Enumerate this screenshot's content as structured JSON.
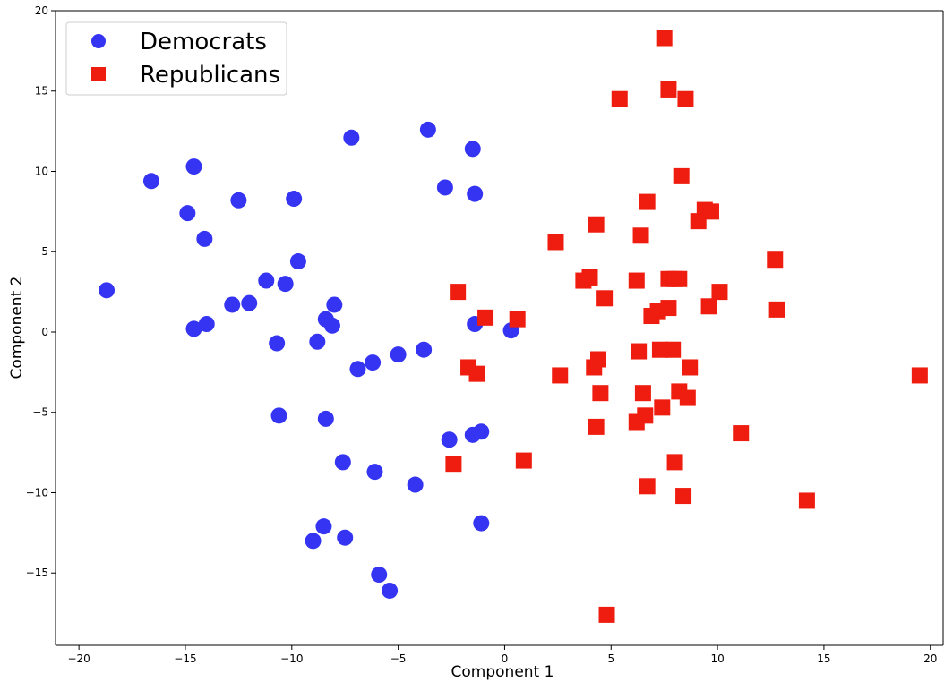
{
  "chart_data": {
    "type": "scatter",
    "xlabel": "Component 1",
    "ylabel": "Component 2",
    "xlim": [
      -21.1,
      20.6
    ],
    "ylim": [
      -19.5,
      20
    ],
    "xticks": [
      -20,
      -15,
      -10,
      -5,
      0,
      5,
      10,
      15,
      20
    ],
    "yticks": [
      -15,
      -10,
      -5,
      0,
      5,
      10,
      15,
      20
    ],
    "xtick_labels": [
      "−20",
      "−15",
      "−10",
      "−5",
      "0",
      "5",
      "10",
      "15",
      "20"
    ],
    "ytick_labels": [
      "−15",
      "−10",
      "−5",
      "0",
      "5",
      "10",
      "15",
      "20"
    ],
    "grid": false,
    "legend": {
      "placement": "top-left"
    },
    "series": [
      {
        "name": "Democrats",
        "marker": "circle",
        "color": "#3434f2",
        "points": [
          [
            -18.7,
            2.6
          ],
          [
            -16.6,
            9.4
          ],
          [
            -14.9,
            7.4
          ],
          [
            -14.6,
            10.3
          ],
          [
            -14.1,
            5.8
          ],
          [
            -14.6,
            0.2
          ],
          [
            -14.0,
            0.5
          ],
          [
            -12.5,
            8.2
          ],
          [
            -12.8,
            1.7
          ],
          [
            -12.0,
            1.8
          ],
          [
            -11.2,
            3.2
          ],
          [
            -10.7,
            -0.7
          ],
          [
            -10.6,
            -5.2
          ],
          [
            -10.3,
            3.0
          ],
          [
            -9.9,
            8.3
          ],
          [
            -9.7,
            4.4
          ],
          [
            -8.8,
            -0.6
          ],
          [
            -8.4,
            0.8
          ],
          [
            -8.1,
            0.4
          ],
          [
            -8.0,
            1.7
          ],
          [
            -8.4,
            -5.4
          ],
          [
            -7.2,
            12.1
          ],
          [
            -7.6,
            -8.1
          ],
          [
            -6.9,
            -2.3
          ],
          [
            -6.2,
            -1.9
          ],
          [
            -6.1,
            -8.7
          ],
          [
            -5.0,
            -1.4
          ],
          [
            -4.2,
            -9.5
          ],
          [
            -3.8,
            -1.1
          ],
          [
            -3.6,
            12.6
          ],
          [
            -2.8,
            9.0
          ],
          [
            -2.6,
            -6.7
          ],
          [
            -1.5,
            11.4
          ],
          [
            -1.4,
            8.6
          ],
          [
            -1.4,
            0.5
          ],
          [
            -1.5,
            -6.4
          ],
          [
            -1.1,
            -6.2
          ],
          [
            -1.1,
            -11.9
          ],
          [
            0.3,
            0.1
          ],
          [
            -9.0,
            -13.0
          ],
          [
            -8.5,
            -12.1
          ],
          [
            -7.5,
            -12.8
          ],
          [
            -5.9,
            -15.1
          ],
          [
            -5.4,
            -16.1
          ]
        ]
      },
      {
        "name": "Republicans",
        "marker": "square",
        "color": "#ee1d0f",
        "points": [
          [
            7.5,
            18.3
          ],
          [
            5.4,
            14.5
          ],
          [
            7.7,
            15.1
          ],
          [
            8.5,
            14.5
          ],
          [
            8.3,
            9.7
          ],
          [
            6.7,
            8.1
          ],
          [
            9.4,
            7.6
          ],
          [
            9.7,
            7.5
          ],
          [
            9.1,
            6.9
          ],
          [
            2.4,
            5.6
          ],
          [
            4.3,
            6.7
          ],
          [
            6.4,
            6.0
          ],
          [
            12.7,
            4.5
          ],
          [
            3.7,
            3.2
          ],
          [
            4.0,
            3.4
          ],
          [
            6.2,
            3.2
          ],
          [
            7.7,
            3.3
          ],
          [
            8.0,
            3.3
          ],
          [
            8.2,
            3.3
          ],
          [
            4.7,
            2.1
          ],
          [
            10.1,
            2.5
          ],
          [
            9.6,
            1.6
          ],
          [
            12.8,
            1.4
          ],
          [
            7.2,
            1.3
          ],
          [
            7.7,
            1.5
          ],
          [
            6.9,
            1.0
          ],
          [
            -2.2,
            2.5
          ],
          [
            -0.9,
            0.9
          ],
          [
            0.6,
            0.8
          ],
          [
            7.3,
            -1.1
          ],
          [
            7.9,
            -1.1
          ],
          [
            6.3,
            -1.2
          ],
          [
            4.4,
            -1.7
          ],
          [
            4.2,
            -2.2
          ],
          [
            8.7,
            -2.2
          ],
          [
            2.6,
            -2.7
          ],
          [
            -1.7,
            -2.2
          ],
          [
            -1.3,
            -2.6
          ],
          [
            4.5,
            -3.8
          ],
          [
            6.5,
            -3.8
          ],
          [
            8.2,
            -3.7
          ],
          [
            8.6,
            -4.1
          ],
          [
            7.4,
            -4.7
          ],
          [
            6.6,
            -5.2
          ],
          [
            6.2,
            -5.6
          ],
          [
            4.3,
            -5.9
          ],
          [
            11.1,
            -6.3
          ],
          [
            -2.4,
            -8.2
          ],
          [
            0.9,
            -8.0
          ],
          [
            8.0,
            -8.1
          ],
          [
            6.7,
            -9.6
          ],
          [
            8.4,
            -10.2
          ],
          [
            14.2,
            -10.5
          ],
          [
            19.5,
            -2.7
          ],
          [
            4.8,
            -17.6
          ]
        ]
      }
    ]
  }
}
